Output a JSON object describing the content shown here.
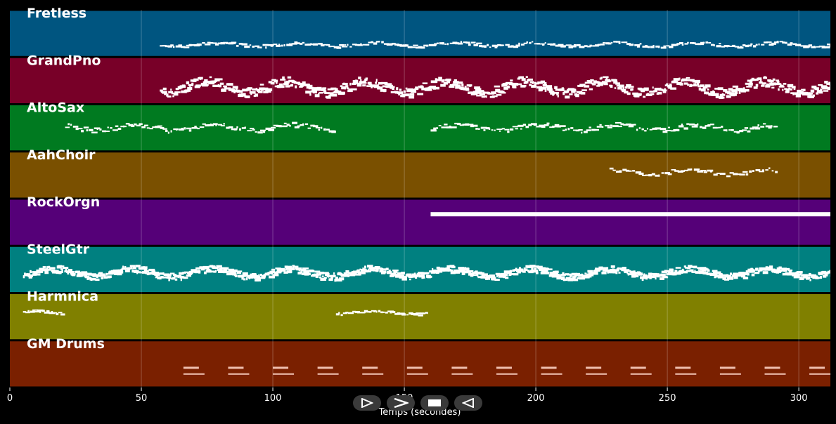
{
  "chart_data": {
    "type": "piano-roll",
    "xlabel": "Temps (secondes)",
    "xlim": [
      0,
      312
    ],
    "x_ticks": [
      0,
      50,
      100,
      150,
      200,
      250,
      300
    ],
    "grid": true,
    "tracks": [
      {
        "name": "Fretless",
        "color": "#005580",
        "note_color": "#ffffff",
        "segments": [
          [
            57,
            312
          ]
        ],
        "level": 0.72,
        "spread": 0.06,
        "density": 1.6,
        "thick": 3
      },
      {
        "name": "GrandPno",
        "color": "#780028",
        "note_color": "#ffffff",
        "segments": [
          [
            57,
            312
          ]
        ],
        "level": 0.62,
        "spread": 0.2,
        "density": 4.0,
        "thick": 4
      },
      {
        "name": "AltoSax",
        "color": "#007a20",
        "note_color": "#ffffff",
        "segments": [
          [
            21,
            124
          ],
          [
            160,
            292
          ]
        ],
        "level": 0.48,
        "spread": 0.1,
        "density": 1.6,
        "thick": 3
      },
      {
        "name": "AahChoir",
        "color": "#7a5000",
        "note_color": "#ffffff",
        "segments": [
          [
            228,
            292
          ]
        ],
        "level": 0.42,
        "spread": 0.08,
        "density": 1.3,
        "thick": 3
      },
      {
        "name": "RockOrgn",
        "color": "#550078",
        "note_color": "#ffffff",
        "segments": [
          [
            160,
            312
          ]
        ],
        "level": 0.33,
        "spread": 0.0,
        "density": 1.0,
        "thick": 6
      },
      {
        "name": "SteelGtr",
        "color": "#008080",
        "note_color": "#ffffff",
        "segments": [
          [
            5,
            312
          ]
        ],
        "level": 0.55,
        "spread": 0.14,
        "density": 4.5,
        "thick": 4
      },
      {
        "name": "Harmnica",
        "color": "#808000",
        "note_color": "#ffffff",
        "segments": [
          [
            5,
            21
          ],
          [
            124,
            159
          ]
        ],
        "level": 0.4,
        "spread": 0.05,
        "density": 1.8,
        "thick": 3
      },
      {
        "name": "GM Drums",
        "color": "#7a2000",
        "note_color": "#f0c0b0",
        "segments": [
          [
            56,
            312
          ]
        ],
        "level": 0.72,
        "spread": 0.1,
        "density": 1.0,
        "thick": 3,
        "drums": true
      }
    ]
  },
  "controls": [
    "play-icon",
    "fast-forward-icon",
    "stop-icon",
    "rewind-icon"
  ]
}
